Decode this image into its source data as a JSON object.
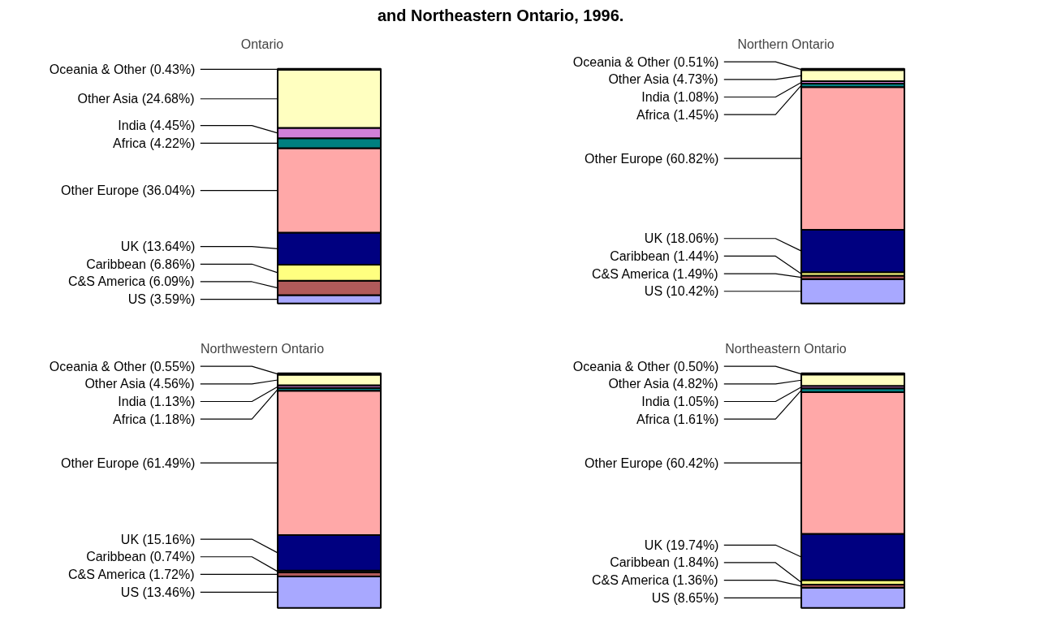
{
  "chart_data": [
    {
      "type": "bar",
      "title": "Ontario",
      "annotations": [
        "and Northeastern Ontario, 1996."
      ],
      "categories": [
        null
      ],
      "stacked": true,
      "series": [
        {
          "color": "#a8a8ff",
          "values": [
            3.59
          ],
          "value_labels": [
            "US (3.59%)"
          ]
        },
        {
          "color": "#b05a5a",
          "values": [
            6.09
          ],
          "value_labels": [
            "C&S America (6.09%)"
          ]
        },
        {
          "color": "#ffff80",
          "values": [
            6.86
          ],
          "value_labels": [
            "Caribbean (6.86%)"
          ]
        },
        {
          "color": "#000080",
          "values": [
            13.64
          ],
          "value_labels": [
            "UK (13.64%)"
          ]
        },
        {
          "color": "#ffa8a8",
          "values": [
            36.04
          ],
          "value_labels": [
            "Other Europe (36.04%)"
          ]
        },
        {
          "color": "#008080",
          "values": [
            4.22
          ],
          "value_labels": [
            "Africa (4.22%)"
          ]
        },
        {
          "color": "#d080d8",
          "values": [
            4.45
          ],
          "value_labels": [
            "India (4.45%)"
          ]
        },
        {
          "color": "#ffffc0",
          "values": [
            24.68
          ],
          "value_labels": [
            "Other Asia (24.68%)"
          ]
        },
        {
          "color": "#400080",
          "values": [
            0.43
          ],
          "value_labels": [
            "Oceania & Other (0.43%)"
          ]
        }
      ]
    },
    {
      "type": "bar",
      "title": "Northern Ontario",
      "categories": [
        null
      ],
      "stacked": true,
      "series": [
        {
          "color": "#a8a8ff",
          "values": [
            10.42
          ],
          "value_labels": [
            "US (10.42%)"
          ]
        },
        {
          "color": "#b05a5a",
          "values": [
            1.49
          ],
          "value_labels": [
            "C&S America (1.49%)"
          ]
        },
        {
          "color": "#ffff80",
          "values": [
            1.44
          ],
          "value_labels": [
            "Caribbean (1.44%)"
          ]
        },
        {
          "color": "#000080",
          "values": [
            18.06
          ],
          "value_labels": [
            "UK (18.06%)"
          ]
        },
        {
          "color": "#ffa8a8",
          "values": [
            60.82
          ],
          "value_labels": [
            "Other Europe (60.82%)"
          ]
        },
        {
          "color": "#008080",
          "values": [
            1.45
          ],
          "value_labels": [
            "Africa (1.45%)"
          ]
        },
        {
          "color": "#d080d8",
          "values": [
            1.08
          ],
          "value_labels": [
            "India (1.08%)"
          ]
        },
        {
          "color": "#ffffc0",
          "values": [
            4.73
          ],
          "value_labels": [
            "Other Asia (4.73%)"
          ]
        },
        {
          "color": "#400080",
          "values": [
            0.51
          ],
          "value_labels": [
            "Oceania & Other (0.51%)"
          ]
        }
      ]
    },
    {
      "type": "bar",
      "title": "Northwestern Ontario",
      "categories": [
        null
      ],
      "stacked": true,
      "series": [
        {
          "color": "#a8a8ff",
          "values": [
            13.46
          ],
          "value_labels": [
            "US (13.46%)"
          ]
        },
        {
          "color": "#b05a5a",
          "values": [
            1.72
          ],
          "value_labels": [
            "C&S America (1.72%)"
          ]
        },
        {
          "color": "#ffff80",
          "values": [
            0.74
          ],
          "value_labels": [
            "Caribbean (0.74%)"
          ]
        },
        {
          "color": "#000080",
          "values": [
            15.16
          ],
          "value_labels": [
            "UK (15.16%)"
          ]
        },
        {
          "color": "#ffa8a8",
          "values": [
            61.49
          ],
          "value_labels": [
            "Other Europe (61.49%)"
          ]
        },
        {
          "color": "#008080",
          "values": [
            1.18
          ],
          "value_labels": [
            "Africa (1.18%)"
          ]
        },
        {
          "color": "#d080d8",
          "values": [
            1.13
          ],
          "value_labels": [
            "India (1.13%)"
          ]
        },
        {
          "color": "#ffffc0",
          "values": [
            4.56
          ],
          "value_labels": [
            "Other Asia (4.56%)"
          ]
        },
        {
          "color": "#400080",
          "values": [
            0.55
          ],
          "value_labels": [
            "Oceania & Other (0.55%)"
          ]
        }
      ]
    },
    {
      "type": "bar",
      "title": "Northeastern Ontario",
      "categories": [
        null
      ],
      "stacked": true,
      "series": [
        {
          "color": "#a8a8ff",
          "values": [
            8.65
          ],
          "value_labels": [
            "US (8.65%)"
          ]
        },
        {
          "color": "#b05a5a",
          "values": [
            1.36
          ],
          "value_labels": [
            "C&S America (1.36%)"
          ]
        },
        {
          "color": "#ffff80",
          "values": [
            1.84
          ],
          "value_labels": [
            "Caribbean (1.84%)"
          ]
        },
        {
          "color": "#000080",
          "values": [
            19.74
          ],
          "value_labels": [
            "UK (19.74%)"
          ]
        },
        {
          "color": "#ffa8a8",
          "values": [
            60.42
          ],
          "value_labels": [
            "Other Europe (60.42%)"
          ]
        },
        {
          "color": "#008080",
          "values": [
            1.61
          ],
          "value_labels": [
            "Africa (1.61%)"
          ]
        },
        {
          "color": "#d080d8",
          "values": [
            1.05
          ],
          "value_labels": [
            "India (1.05%)"
          ]
        },
        {
          "color": "#ffffc0",
          "values": [
            4.82
          ],
          "value_labels": [
            "Other Asia (4.82%)"
          ]
        },
        {
          "color": "#400080",
          "values": [
            0.5
          ],
          "value_labels": [
            "Oceania & Other (0.50%)"
          ]
        }
      ]
    }
  ]
}
